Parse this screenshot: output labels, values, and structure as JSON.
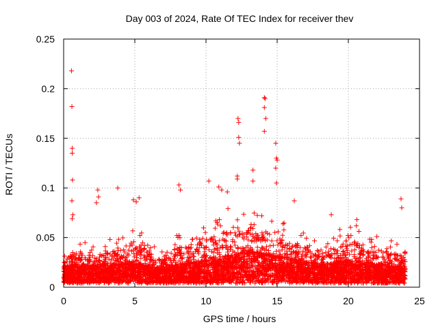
{
  "chart_data": {
    "type": "scatter",
    "title": "Day 003 of 2024, Rate Of TEC Index for receiver thev",
    "xlabel": "GPS time / hours",
    "ylabel": "ROTI / TECUs",
    "xlim": [
      0,
      25
    ],
    "ylim": [
      0,
      0.25
    ],
    "x_ticks": [
      "0",
      "5",
      "10",
      "15",
      "20",
      "25"
    ],
    "y_ticks": [
      "0",
      "0.05",
      "0.1",
      "0.15",
      "0.2",
      "0.25"
    ],
    "grid": true,
    "marker": "plus",
    "series_color": "#ff0000",
    "outliers": {
      "x": [
        0.55,
        0.58,
        0.6,
        0.6,
        0.62,
        0.58,
        0.65,
        0.6,
        2.3,
        2.4,
        2.45,
        3.8,
        4.9,
        5.1,
        5.3,
        8.1,
        8.2,
        10.2,
        10.9,
        11.1,
        11.5,
        12.2,
        12.25,
        12.3,
        12.3,
        12.35,
        12.2,
        13.3,
        13.3,
        14.1,
        14.15,
        14.1,
        14.2,
        14.1,
        14.9,
        14.95,
        15.0,
        14.9,
        14.95,
        16.2,
        18.8,
        20.6,
        23.7,
        23.75
      ],
      "y": [
        0.218,
        0.182,
        0.14,
        0.135,
        0.108,
        0.087,
        0.073,
        0.069,
        0.085,
        0.098,
        0.091,
        0.1,
        0.088,
        0.086,
        0.09,
        0.103,
        0.098,
        0.107,
        0.101,
        0.098,
        0.096,
        0.112,
        0.17,
        0.166,
        0.151,
        0.145,
        0.109,
        0.118,
        0.107,
        0.191,
        0.19,
        0.181,
        0.17,
        0.157,
        0.145,
        0.13,
        0.128,
        0.12,
        0.105,
        0.087,
        0.073,
        0.068,
        0.089,
        0.08
      ]
    },
    "noise_profile": {
      "x": [
        0,
        1,
        2,
        3,
        4,
        5,
        6,
        7,
        8,
        9,
        10,
        11,
        12,
        13,
        14,
        15,
        16,
        17,
        18,
        19,
        20,
        21,
        22,
        23,
        24
      ],
      "baseline_y": [
        0.012,
        0.014,
        0.013,
        0.013,
        0.014,
        0.016,
        0.012,
        0.011,
        0.014,
        0.015,
        0.017,
        0.019,
        0.021,
        0.024,
        0.022,
        0.02,
        0.018,
        0.016,
        0.014,
        0.015,
        0.017,
        0.016,
        0.014,
        0.013,
        0.012
      ],
      "spread_y": [
        0.02,
        0.03,
        0.025,
        0.03,
        0.035,
        0.045,
        0.03,
        0.02,
        0.04,
        0.035,
        0.045,
        0.055,
        0.06,
        0.055,
        0.05,
        0.045,
        0.04,
        0.035,
        0.03,
        0.035,
        0.045,
        0.04,
        0.035,
        0.03,
        0.025
      ]
    }
  }
}
